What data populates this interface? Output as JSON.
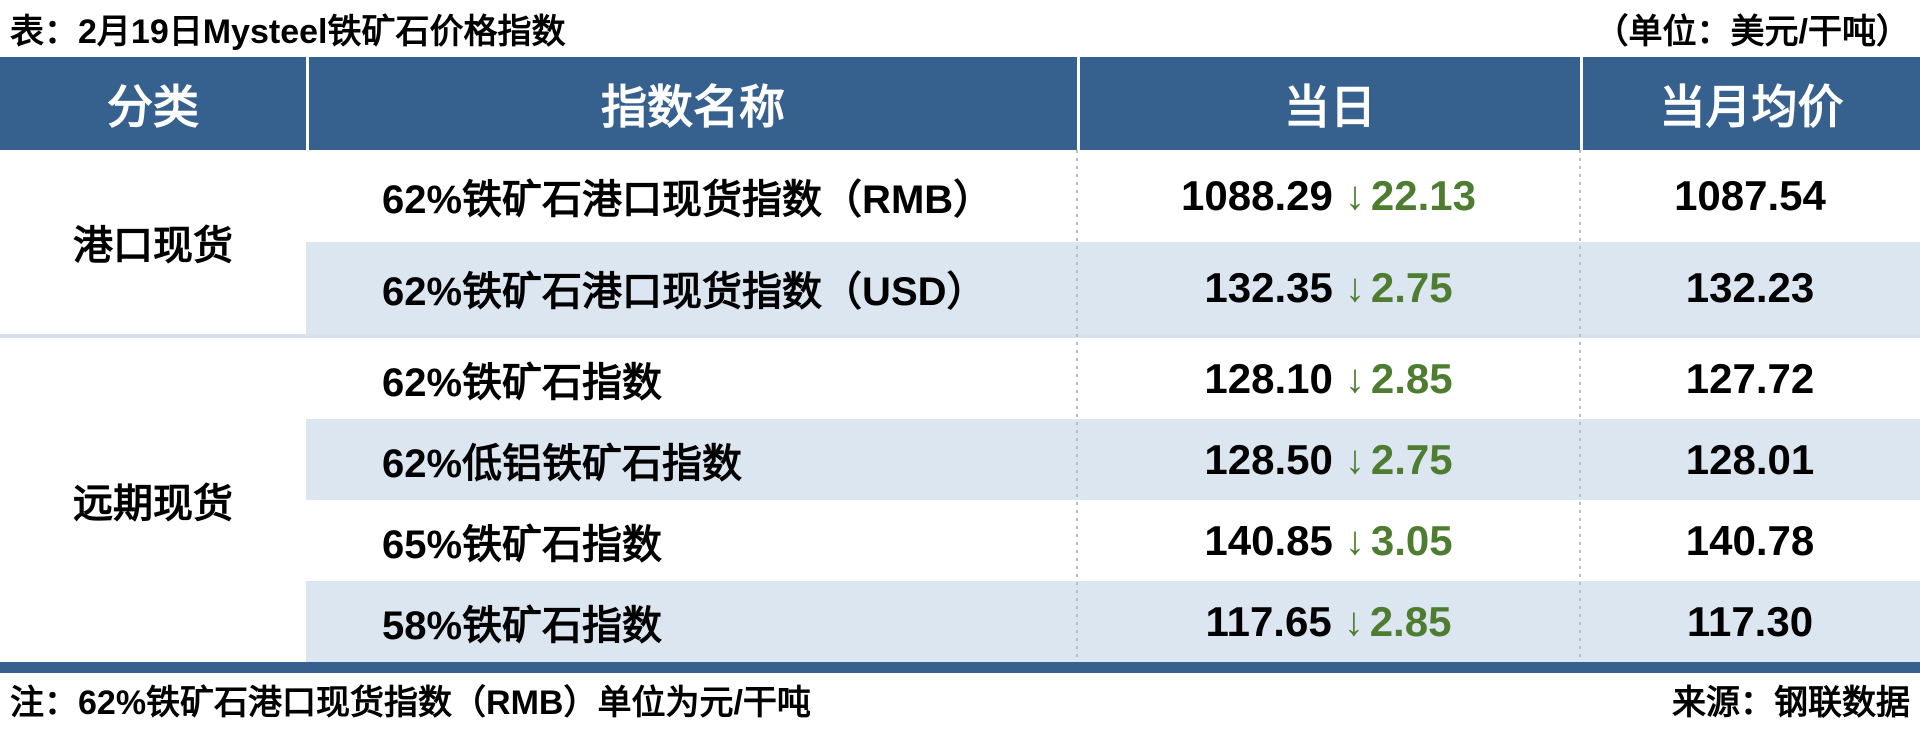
{
  "page": {
    "title": "表：2月19日Mysteel铁矿石价格指数",
    "unit_note": "（单位：美元/干吨）",
    "footnote": "注：62%铁矿石港口现货指数（RMB）单位为元/干吨",
    "source": "来源：钢联数据"
  },
  "colors": {
    "header_bg": "#36618e",
    "stripe_bg": "#dce6f1",
    "change_green": "#4e7d32",
    "bottom_rule": "#36618e",
    "group_separator": "#d9e1ec"
  },
  "icons": {
    "down_arrow": "↓"
  },
  "table": {
    "columns": [
      "分类",
      "指数名称",
      "当日",
      "当月均价"
    ],
    "groups": [
      {
        "category": "港口现货"
      },
      {
        "category": "远期现货"
      }
    ],
    "rows": [
      {
        "name": "62%铁矿石港口现货指数（RMB）",
        "value": "1088.29",
        "change": "22.13",
        "avg": "1087.54"
      },
      {
        "name": "62%铁矿石港口现货指数（USD）",
        "value": "132.35",
        "change": "2.75",
        "avg": "132.23"
      },
      {
        "name": "62%铁矿石指数",
        "value": "128.10",
        "change": "2.85",
        "avg": "127.72"
      },
      {
        "name": "62%低铝铁矿石指数",
        "value": "128.50",
        "change": "2.75",
        "avg": "128.01"
      },
      {
        "name": "65%铁矿石指数",
        "value": "140.85",
        "change": "3.05",
        "avg": "140.78"
      },
      {
        "name": "58%铁矿石指数",
        "value": "117.65",
        "change": "2.85",
        "avg": "117.30"
      }
    ]
  },
  "chart_data": {
    "type": "table",
    "title": "表：2月19日Mysteel铁矿石价格指数",
    "unit": "美元/干吨",
    "columns": [
      "分类",
      "指数名称",
      "当日",
      "当日涨跌",
      "当月均价"
    ],
    "rows": [
      [
        "港口现货",
        "62%铁矿石港口现货指数（RMB）",
        1088.29,
        -22.13,
        1087.54
      ],
      [
        "港口现货",
        "62%铁矿石港口现货指数（USD）",
        132.35,
        -2.75,
        132.23
      ],
      [
        "远期现货",
        "62%铁矿石指数",
        128.1,
        -2.85,
        127.72
      ],
      [
        "远期现货",
        "62%低铝铁矿石指数",
        128.5,
        -2.75,
        128.01
      ],
      [
        "远期现货",
        "65%铁矿石指数",
        140.85,
        -3.05,
        140.78
      ],
      [
        "远期现货",
        "58%铁矿石指数",
        117.65,
        -2.85,
        117.3
      ]
    ],
    "notes": [
      "注：62%铁矿石港口现货指数（RMB）单位为元/干吨",
      "来源：钢联数据"
    ]
  }
}
